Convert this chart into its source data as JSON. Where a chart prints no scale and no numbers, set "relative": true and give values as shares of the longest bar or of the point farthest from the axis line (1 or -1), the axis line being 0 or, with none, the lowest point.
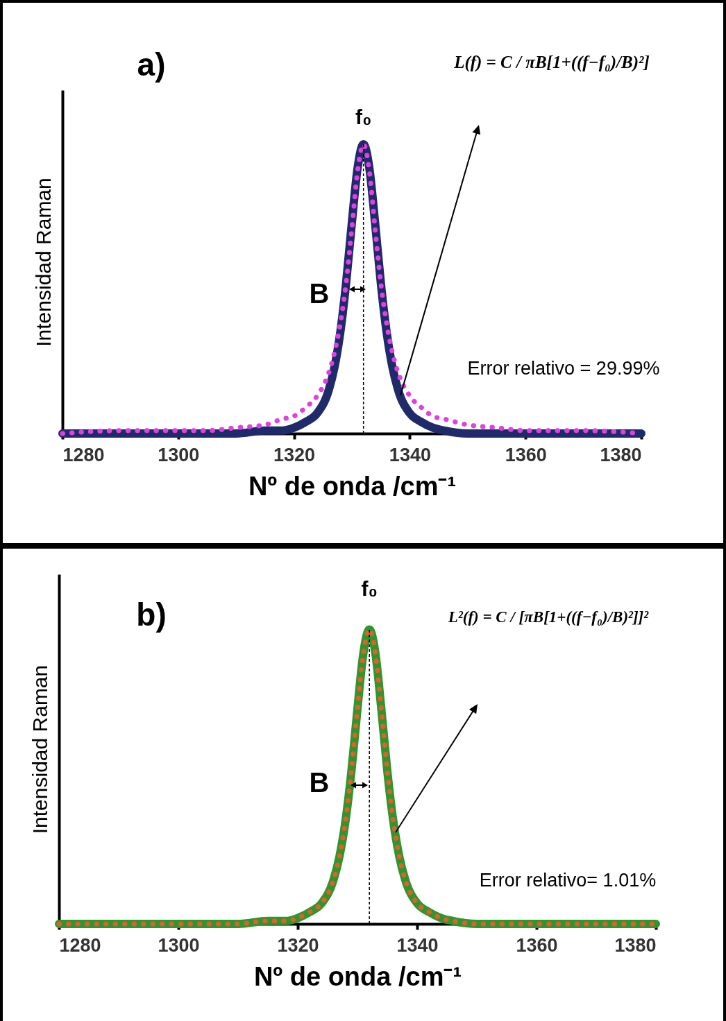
{
  "chart_data": [
    {
      "type": "line",
      "xlabel": "Nº de onda /cm⁻¹",
      "ylabel": "Intensidad Raman",
      "relative": true,
      "grid": false,
      "x": [
        1280,
        1290,
        1300,
        1305,
        1310,
        1315,
        1318,
        1320,
        1322,
        1324,
        1326,
        1327,
        1328,
        1329,
        1330,
        1331,
        1332,
        1333,
        1334,
        1335,
        1336,
        1337,
        1338,
        1340,
        1342,
        1344,
        1346,
        1350,
        1355,
        1360,
        1370,
        1380
      ],
      "series": [
        {
          "color": "#1f2a6b",
          "line_style": "solid",
          "values": [
            0,
            0,
            0,
            0,
            0,
            0.01,
            0.01,
            0.02,
            0.04,
            0.07,
            0.15,
            0.23,
            0.35,
            0.52,
            0.73,
            0.92,
            1,
            0.92,
            0.73,
            0.52,
            0.35,
            0.23,
            0.15,
            0.07,
            0.04,
            0.02,
            0.01,
            0,
            0,
            0,
            0,
            0
          ]
        },
        {
          "color": "#e040e0",
          "line_style": "dotted",
          "values": [
            0,
            0.01,
            0.01,
            0.01,
            0.02,
            0.03,
            0.05,
            0.06,
            0.09,
            0.13,
            0.21,
            0.28,
            0.38,
            0.52,
            0.71,
            0.91,
            1,
            0.91,
            0.71,
            0.52,
            0.38,
            0.28,
            0.21,
            0.13,
            0.09,
            0.06,
            0.05,
            0.03,
            0.02,
            0.01,
            0.01,
            0
          ]
        }
      ],
      "xlim": [
        1280,
        1380
      ],
      "xticks": [
        1280,
        1300,
        1320,
        1340,
        1360,
        1380
      ],
      "ref_lines": [
        {
          "axis": "x",
          "value": 1332,
          "label": "f₀",
          "color": "#000000",
          "line_style": "dashed"
        }
      ],
      "annotations": [
        "a)",
        "L(f) = C / πB[1+((f−f₀)/B)²]",
        "B",
        "Error relativo = 29.99%"
      ]
    },
    {
      "type": "line",
      "xlabel": "Nº de onda /cm⁻¹",
      "ylabel": "Intensidad Raman",
      "relative": true,
      "grid": false,
      "x": [
        1280,
        1290,
        1300,
        1305,
        1310,
        1315,
        1318,
        1320,
        1322,
        1324,
        1326,
        1327,
        1328,
        1329,
        1330,
        1331,
        1332,
        1333,
        1334,
        1335,
        1336,
        1337,
        1338,
        1340,
        1342,
        1344,
        1346,
        1350,
        1355,
        1360,
        1370,
        1380
      ],
      "series": [
        {
          "color": "#2e962e",
          "line_style": "solid",
          "values": [
            0,
            0,
            0,
            0,
            0,
            0.01,
            0.01,
            0.02,
            0.04,
            0.07,
            0.15,
            0.23,
            0.35,
            0.52,
            0.73,
            0.92,
            1,
            0.92,
            0.73,
            0.52,
            0.35,
            0.23,
            0.15,
            0.07,
            0.04,
            0.02,
            0.01,
            0,
            0,
            0,
            0,
            0
          ]
        },
        {
          "color": "#e0602a",
          "line_style": "dotted",
          "values": [
            0,
            0,
            0,
            0,
            0,
            0.01,
            0.01,
            0.02,
            0.04,
            0.07,
            0.15,
            0.23,
            0.35,
            0.52,
            0.73,
            0.92,
            1,
            0.92,
            0.73,
            0.52,
            0.35,
            0.23,
            0.15,
            0.07,
            0.04,
            0.02,
            0.01,
            0,
            0,
            0,
            0,
            0
          ]
        }
      ],
      "xlim": [
        1280,
        1380
      ],
      "xticks": [
        1280,
        1300,
        1320,
        1340,
        1360,
        1380
      ],
      "ref_lines": [
        {
          "axis": "x",
          "value": 1332,
          "label": "f₀",
          "color": "#000000",
          "line_style": "dashed"
        }
      ],
      "annotations": [
        "b)",
        "L²(f) = C / [πB[1+((f−f₀)/B)²]]²",
        "B",
        "Error relativo= 1.01%"
      ]
    }
  ]
}
